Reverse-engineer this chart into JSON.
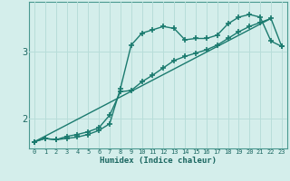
{
  "xlabel": "Humidex (Indice chaleur)",
  "background_color": "#d4eeeb",
  "grid_color": "#b8ddd9",
  "line_color": "#1a7a6e",
  "xlim": [
    -0.5,
    23.5
  ],
  "ylim": [
    1.55,
    3.75
  ],
  "yticks": [
    2,
    3
  ],
  "xticks": [
    0,
    1,
    2,
    3,
    4,
    5,
    6,
    7,
    8,
    9,
    10,
    11,
    12,
    13,
    14,
    15,
    16,
    17,
    18,
    19,
    20,
    21,
    22,
    23
  ],
  "series1_x": [
    0,
    1,
    2,
    3,
    4,
    5,
    6,
    7,
    8,
    9,
    10,
    11,
    12,
    13,
    14,
    15,
    16,
    17,
    18,
    19,
    20,
    21,
    22,
    23
  ],
  "series1_y": [
    1.65,
    1.7,
    1.68,
    1.7,
    1.72,
    1.76,
    1.82,
    1.92,
    2.45,
    3.1,
    3.28,
    3.33,
    3.38,
    3.35,
    3.18,
    3.2,
    3.2,
    3.25,
    3.42,
    3.52,
    3.56,
    3.52,
    3.16,
    3.08
  ],
  "series2_x": [
    0,
    1,
    2,
    3,
    4,
    5,
    6,
    7,
    8,
    9,
    10,
    11,
    12,
    13,
    14,
    15,
    16,
    17,
    18,
    19,
    20,
    21,
    22,
    23
  ],
  "series2_y": [
    1.65,
    1.7,
    1.68,
    1.73,
    1.76,
    1.8,
    1.86,
    2.05,
    2.4,
    2.42,
    2.55,
    2.65,
    2.76,
    2.87,
    2.93,
    2.98,
    3.03,
    3.1,
    3.2,
    3.3,
    3.38,
    3.44,
    3.5,
    3.08
  ],
  "series3_x": [
    0,
    22
  ],
  "series3_y": [
    1.65,
    3.5
  ]
}
